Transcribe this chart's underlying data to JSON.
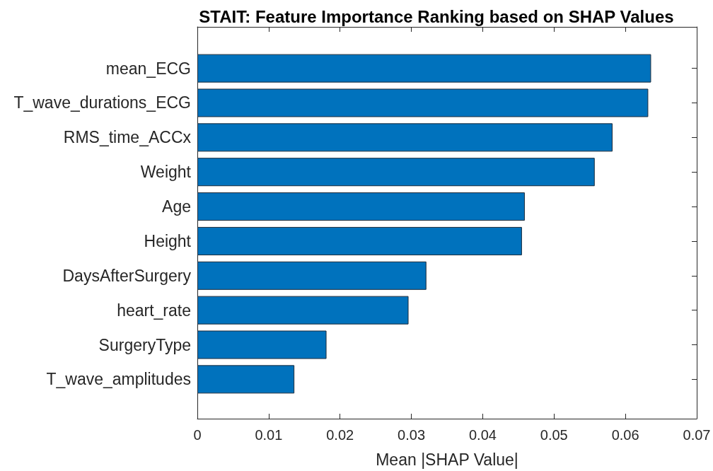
{
  "chart_data": {
    "type": "bar",
    "orientation": "horizontal",
    "title": "STAIT: Feature Importance Ranking based on SHAP Values",
    "xlabel": "Mean |SHAP Value|",
    "categories": [
      "mean_ECG",
      "T_wave_durations_ECG",
      "RMS_time_ACCx",
      "Weight",
      "Age",
      "Height",
      "DaysAfterSurgery",
      "heart_rate",
      "SurgeryType",
      "T_wave_amplitudes"
    ],
    "values": [
      0.0636,
      0.0632,
      0.0582,
      0.0557,
      0.0459,
      0.0455,
      0.0321,
      0.0296,
      0.0181,
      0.0136
    ],
    "color": "#0072bd",
    "xlim": [
      0,
      0.07
    ],
    "xticks": [
      0,
      0.01,
      0.02,
      0.03,
      0.04,
      0.05,
      0.06,
      0.07
    ],
    "grid": false
  }
}
